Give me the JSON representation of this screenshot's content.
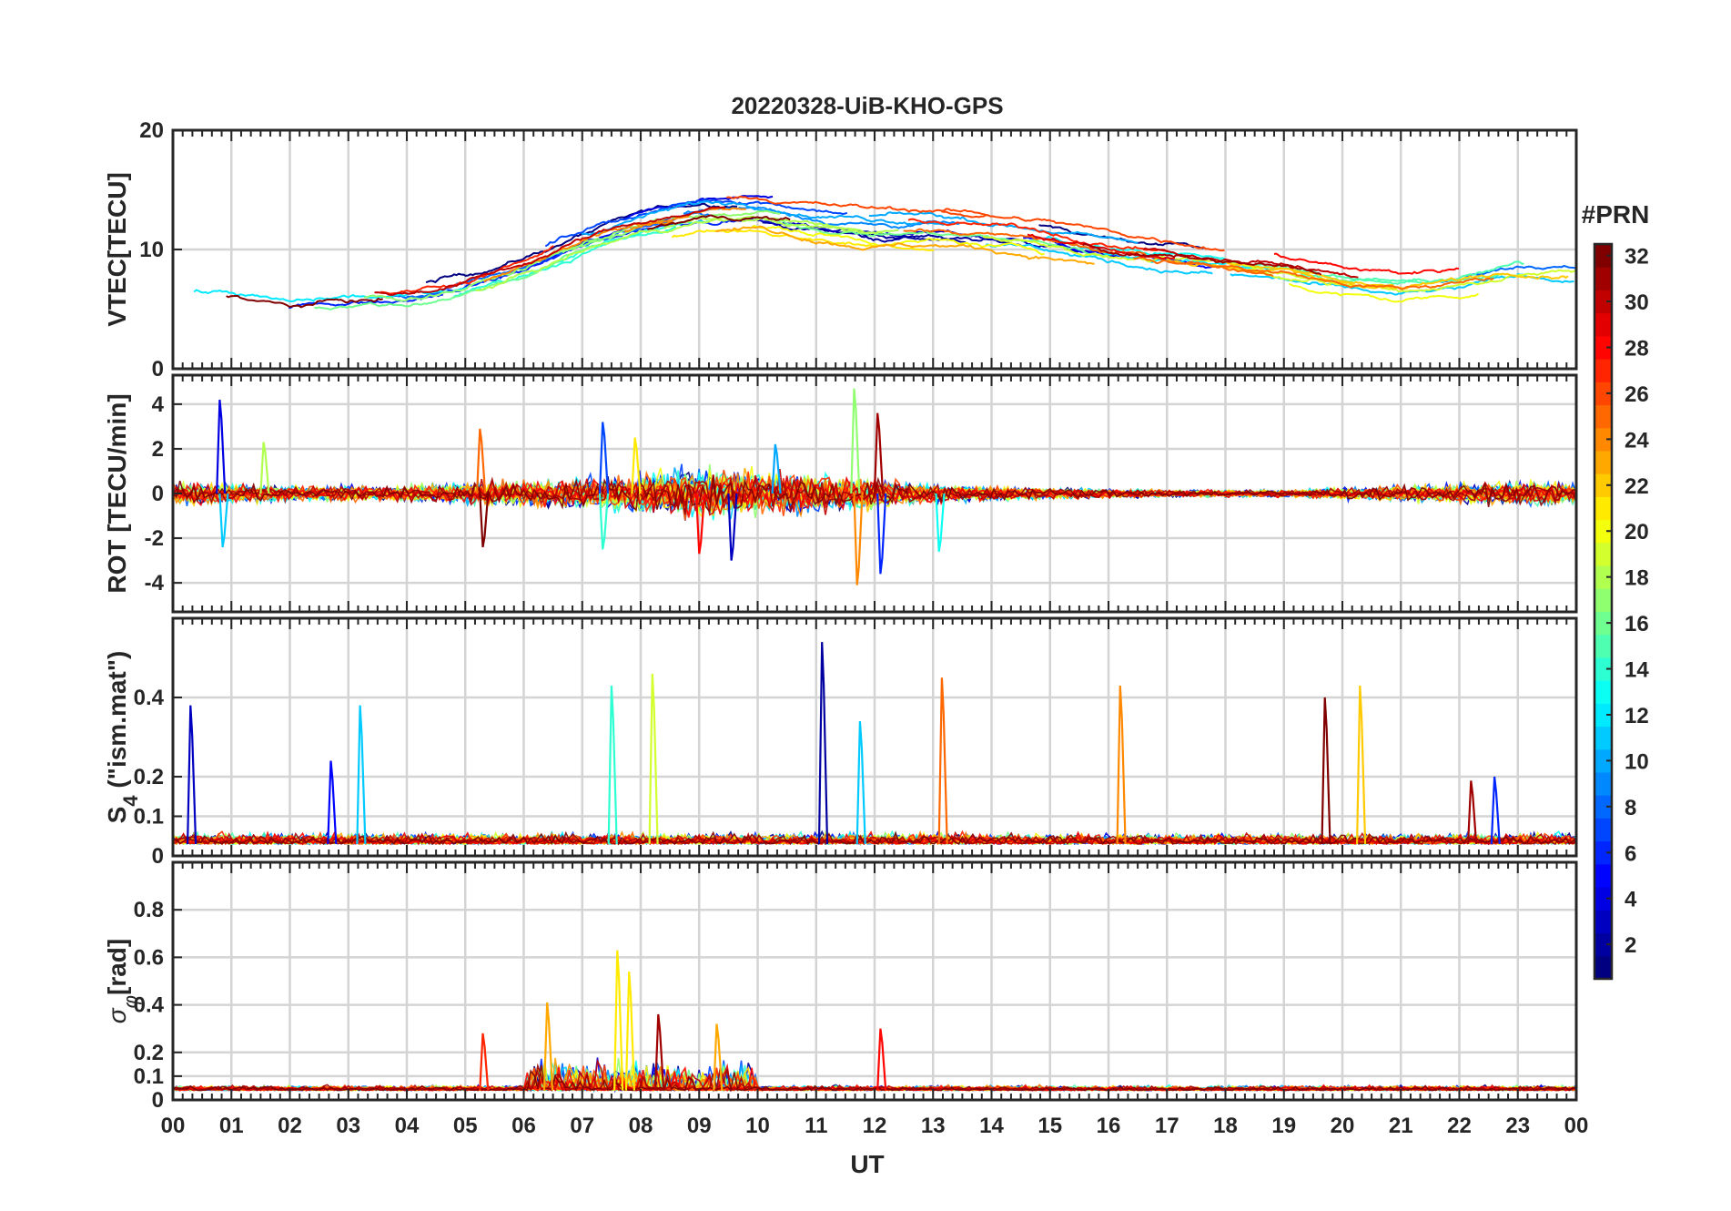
{
  "chart_data": {
    "type": "line",
    "title": "20220328-UiB-KHO-GPS",
    "xlabel": "UT",
    "x_tick_labels": [
      "00",
      "01",
      "02",
      "03",
      "04",
      "05",
      "06",
      "07",
      "08",
      "09",
      "10",
      "11",
      "12",
      "13",
      "14",
      "15",
      "16",
      "17",
      "18",
      "19",
      "20",
      "21",
      "22",
      "23",
      "00"
    ],
    "xlim_hours": [
      0,
      24
    ],
    "grid": true,
    "colorbar": {
      "label": "#PRN",
      "range": [
        1,
        32
      ],
      "ticks": [
        2,
        4,
        6,
        8,
        10,
        12,
        14,
        16,
        18,
        20,
        22,
        24,
        26,
        28,
        30,
        32
      ],
      "colormap": "jet",
      "placement": "right"
    },
    "panels": [
      {
        "id": "vtec",
        "ylabel": "VTEC[TECU]",
        "ylim": [
          0,
          20
        ],
        "yticks": [
          0,
          10,
          20
        ],
        "shape": "smooth",
        "baseline_hours": [
          0,
          1,
          2,
          3,
          4,
          5,
          6,
          7,
          8,
          9,
          10,
          11,
          12,
          13,
          14,
          15,
          16,
          17,
          18,
          19,
          20,
          21,
          22,
          23,
          24
        ],
        "baseline_values": [
          6.5,
          6.5,
          5.5,
          6,
          6,
          7,
          8.5,
          10.5,
          12,
          13,
          13.2,
          12.5,
          12,
          12,
          11.5,
          11,
          10,
          9.5,
          9,
          8.5,
          7.5,
          7,
          7.5,
          8.5,
          8.5
        ],
        "spread": 2.5
      },
      {
        "id": "rot",
        "ylabel": "ROT [TECU/min]",
        "ylim": [
          -5.3,
          5.3
        ],
        "yticks": [
          -4,
          -2,
          0,
          2,
          4
        ],
        "shape": "noise",
        "activity_hours": [
          0,
          1,
          2,
          3,
          4,
          5,
          6,
          7,
          8,
          9,
          10,
          11,
          12,
          13,
          14,
          15,
          16,
          17,
          18,
          19,
          20,
          21,
          22,
          23,
          24
        ],
        "activity_amplitude": [
          0.6,
          0.5,
          0.4,
          0.4,
          0.4,
          0.6,
          0.7,
          0.8,
          1.0,
          1.3,
          1.1,
          1.0,
          0.8,
          0.5,
          0.4,
          0.3,
          0.25,
          0.2,
          0.2,
          0.2,
          0.3,
          0.4,
          0.5,
          0.6,
          0.6
        ],
        "spikes": [
          [
            0.8,
            4.2
          ],
          [
            0.85,
            -2.4
          ],
          [
            1.55,
            2.3
          ],
          [
            5.25,
            2.9
          ],
          [
            5.3,
            -2.4
          ],
          [
            7.35,
            3.2
          ],
          [
            7.35,
            -2.5
          ],
          [
            7.9,
            2.5
          ],
          [
            9.0,
            -2.7
          ],
          [
            9.55,
            -3.0
          ],
          [
            10.3,
            2.2
          ],
          [
            11.65,
            4.7
          ],
          [
            11.7,
            -4.1
          ],
          [
            12.05,
            3.6
          ],
          [
            12.1,
            -3.6
          ],
          [
            13.1,
            -2.6
          ]
        ]
      },
      {
        "id": "s4",
        "ylabel": "S4 (\"ism.mat\")",
        "ylabel_main": "S",
        "ylabel_subscript": "4",
        "ylabel_suffix": " (\"ism.mat\")",
        "ylim": [
          0,
          0.6
        ],
        "yticks": [
          0,
          0.1,
          0.2,
          0.4
        ],
        "shape": "positive",
        "base_level": 0.03,
        "noise_level": 0.02,
        "spikes": [
          [
            0.3,
            0.38,
            3
          ],
          [
            2.7,
            0.24,
            5
          ],
          [
            3.2,
            0.38,
            11
          ],
          [
            7.5,
            0.43,
            14
          ],
          [
            8.2,
            0.46,
            19
          ],
          [
            11.1,
            0.54,
            2
          ],
          [
            11.75,
            0.34,
            11
          ],
          [
            13.15,
            0.45,
            25
          ],
          [
            16.2,
            0.43,
            24
          ],
          [
            19.7,
            0.4,
            32
          ],
          [
            20.3,
            0.43,
            22
          ],
          [
            22.2,
            0.19,
            31
          ],
          [
            22.6,
            0.2,
            6
          ]
        ]
      },
      {
        "id": "sigma_phi",
        "ylabel": "σφ[rad]",
        "ylabel_main": "σ",
        "ylabel_subscript": "φ",
        "ylabel_suffix": "[rad]",
        "ylim": [
          0,
          1.0
        ],
        "yticks": [
          0,
          0.1,
          0.2,
          0.4,
          0.6,
          0.8
        ],
        "shape": "positive",
        "base_level": 0.04,
        "noise_level": 0.015,
        "activity_window": [
          6,
          10
        ],
        "activity_amplitude": 0.15,
        "spikes": [
          [
            5.3,
            0.28,
            27
          ],
          [
            6.4,
            0.41,
            23
          ],
          [
            7.6,
            0.63,
            21
          ],
          [
            7.8,
            0.54,
            21
          ],
          [
            8.3,
            0.36,
            31
          ],
          [
            9.3,
            0.32,
            23
          ],
          [
            12.1,
            0.3,
            28
          ]
        ]
      }
    ],
    "series_count": 32,
    "series_prn": [
      1,
      2,
      3,
      4,
      5,
      6,
      7,
      8,
      9,
      10,
      11,
      12,
      13,
      14,
      15,
      16,
      17,
      18,
      19,
      20,
      21,
      22,
      23,
      24,
      25,
      26,
      27,
      28,
      29,
      30,
      31,
      32
    ]
  }
}
